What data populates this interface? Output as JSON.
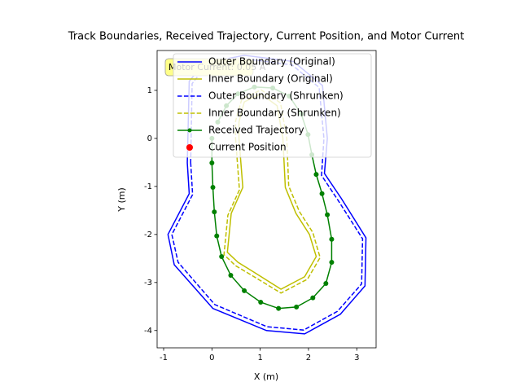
{
  "chart_data": {
    "type": "line",
    "title": "Track Boundaries, Received Trajectory, Current Position, and Motor Current",
    "x_label": "X (m)",
    "y_label": "Y (m)",
    "xlim": [
      -1.135,
      3.4
    ],
    "ylim": [
      -4.36,
      1.83
    ],
    "xticks": [
      -1,
      0,
      1,
      2,
      3
    ],
    "yticks": [
      1,
      0,
      -1,
      -2,
      -3,
      -4
    ],
    "legend": "upper right",
    "annotation": "Motor Current: 0.05 A",
    "series": [
      {
        "name": "Outer Boundary (Original)",
        "color": "#0000ff",
        "linestyle": "solid",
        "closed": true,
        "x": [
          -0.51,
          -0.47,
          -0.91,
          -0.78,
          0.02,
          1.13,
          1.92,
          2.66,
          3.17,
          3.19,
          2.68,
          2.33,
          2.39,
          2.29,
          1.69,
          0.67,
          -0.17,
          -0.47
        ],
        "values": [
          -0.51,
          -1.15,
          -2.0,
          -2.63,
          -3.54,
          -4.0,
          -4.07,
          -3.66,
          -3.07,
          -2.07,
          -1.25,
          -0.73,
          0.0,
          1.1,
          1.6,
          1.73,
          1.56,
          1.19
        ]
      },
      {
        "name": "Inner Boundary (Original)",
        "color": "#bfbf00",
        "linestyle": "solid",
        "closed": true,
        "x": [
          0.56,
          0.64,
          0.4,
          0.32,
          0.54,
          0.83,
          1.43,
          1.92,
          2.16,
          2.02,
          1.74,
          1.52,
          1.47,
          1.35,
          1.01,
          0.67,
          0.56
        ],
        "values": [
          0,
          -1.02,
          -1.56,
          -2.37,
          -2.58,
          -2.76,
          -3.14,
          -2.88,
          -2.46,
          -2.0,
          -1.56,
          -1.02,
          0,
          0.68,
          0.93,
          0.76,
          0.34
        ]
      },
      {
        "name": "Outer Boundary (Shrunken)",
        "color": "#0000ff",
        "linestyle": "dashed",
        "closed": true,
        "x": [
          -0.44,
          -0.4,
          -0.83,
          -0.7,
          0.06,
          1.14,
          1.9,
          2.6,
          3.1,
          3.12,
          2.62,
          2.27,
          2.32,
          2.22,
          1.66,
          0.67,
          -0.14,
          -0.41
        ],
        "values": [
          -0.5,
          -1.17,
          -2.0,
          -2.58,
          -3.46,
          -3.92,
          -3.99,
          -3.6,
          -3.03,
          -2.09,
          -1.3,
          -0.77,
          0.0,
          1.06,
          1.53,
          1.66,
          1.49,
          1.14
        ]
      },
      {
        "name": "Inner Boundary (Shrunken)",
        "color": "#bfbf00",
        "linestyle": "dashed",
        "closed": true,
        "x": [
          0.49,
          0.57,
          0.33,
          0.25,
          0.49,
          0.79,
          1.43,
          1.98,
          2.24,
          2.09,
          1.81,
          1.59,
          1.55,
          1.42,
          1.02,
          0.62,
          0.49
        ],
        "values": [
          0,
          -1.07,
          -1.6,
          -2.42,
          -2.65,
          -2.83,
          -3.22,
          -2.93,
          -2.48,
          -1.96,
          -1.52,
          -0.99,
          0,
          0.74,
          1.01,
          0.82,
          0.36
        ]
      },
      {
        "name": "Received Trajectory",
        "color": "#008000",
        "linestyle": "solid",
        "marker": "circle",
        "x": [
          0,
          0,
          0.02,
          0.05,
          0.1,
          0.2,
          0.39,
          0.67,
          1.01,
          1.38,
          1.75,
          2.09,
          2.36,
          2.48,
          2.48,
          2.39,
          2.28,
          2.16,
          2.07,
          1.99,
          1.85,
          1.6,
          1.26,
          0.88,
          0.54,
          0.3,
          0.12
        ],
        "values": [
          0,
          -0.51,
          -1.02,
          -1.53,
          -2.03,
          -2.46,
          -2.85,
          -3.17,
          -3.41,
          -3.54,
          -3.51,
          -3.32,
          -3.02,
          -2.58,
          -2.1,
          -1.59,
          -1.15,
          -0.75,
          -0.34,
          0.08,
          0.51,
          0.88,
          1.05,
          1.07,
          0.93,
          0.68,
          0.34
        ]
      },
      {
        "name": "Current Position",
        "color": "#ff0000",
        "linestyle": "none",
        "marker": "circle",
        "x": [
          -0.47
        ],
        "values": [
          -0.19
        ]
      }
    ]
  }
}
